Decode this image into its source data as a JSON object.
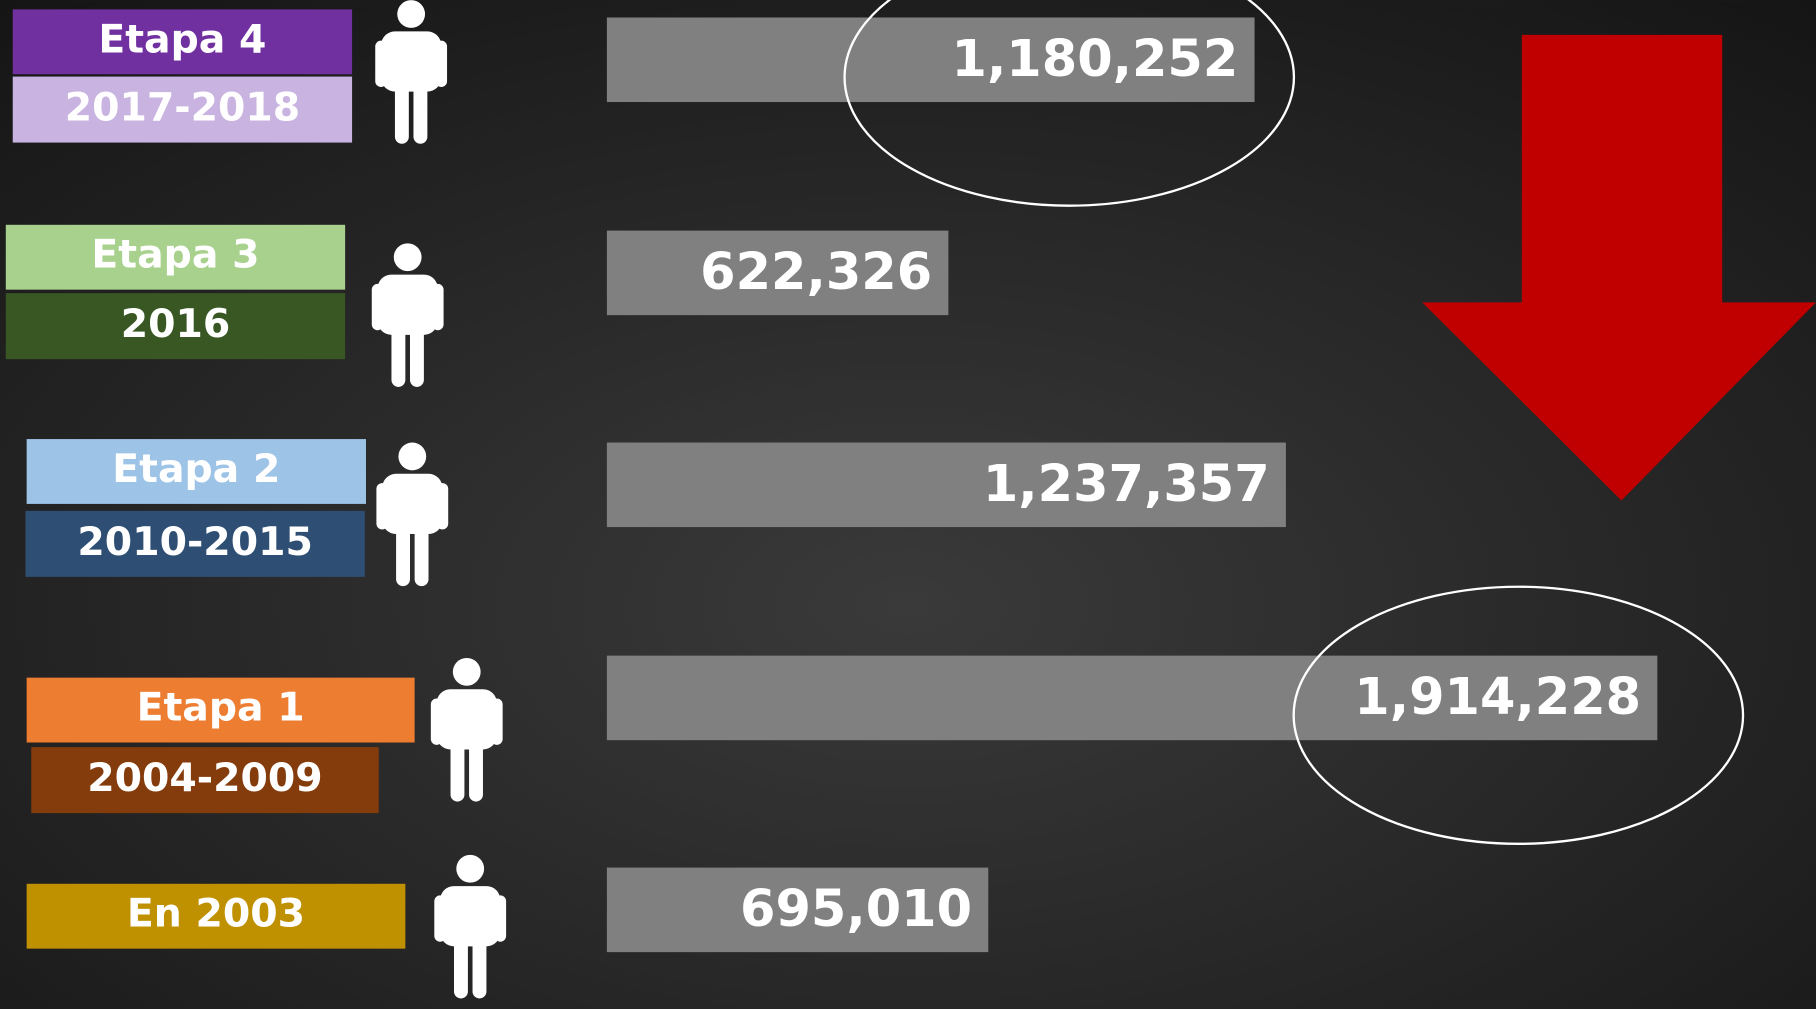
{
  "chart_data": {
    "type": "bar",
    "orientation": "horizontal",
    "categories": [
      "Etapa 4",
      "Etapa 3",
      "Etapa 2",
      "Etapa 1",
      "En 2003"
    ],
    "periods": [
      "2017-2018",
      "2016",
      "2010-2015",
      "2004-2009",
      null
    ],
    "category_colors": [
      "#7030a0",
      "#a9d18e",
      "#9dc3e6",
      "#ed7d31",
      "#bf9000"
    ],
    "period_colors": [
      "#c9b3e0",
      "#385723",
      "#2e4e73",
      "#843c0c",
      null
    ],
    "values": [
      1180252,
      622326,
      1237357,
      1914228,
      695010
    ],
    "value_labels": [
      "1,180,252",
      "622,326",
      "1,237,357",
      "1,914,228",
      "695,010"
    ],
    "color": "#808080",
    "highlighted": [
      0,
      3
    ]
  }
}
